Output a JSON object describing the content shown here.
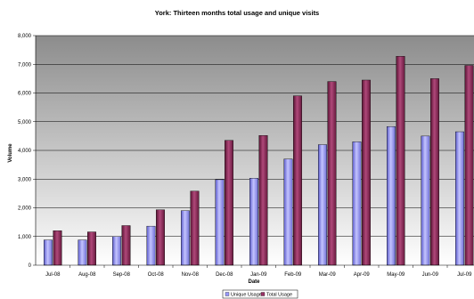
{
  "chart_data": {
    "type": "bar",
    "title": "York: Thirteen months total usage and unique visits",
    "xlabel": "Date",
    "ylabel": "Volume",
    "ylim": [
      0,
      8000
    ],
    "yticks": [
      "0",
      "1,000",
      "2,000",
      "3,000",
      "4,000",
      "5,000",
      "6,000",
      "7,000",
      "8,000"
    ],
    "categories": [
      "Jul-08",
      "Aug-08",
      "Sep-08",
      "Oct-08",
      "Nov-08",
      "Dec-08",
      "Jan-09",
      "Feb-09",
      "Mar-09",
      "Apr-09",
      "May-09",
      "Jun-09",
      "Jul-09"
    ],
    "series": [
      {
        "name": "Unique Usage",
        "color": "#9999ff",
        "values": [
          880,
          880,
          1000,
          1360,
          1900,
          2980,
          3030,
          3700,
          4200,
          4300,
          4830,
          4500,
          4650
        ]
      },
      {
        "name": "Total Usage",
        "color": "#993366",
        "values": [
          1200,
          1160,
          1380,
          1930,
          2580,
          4350,
          4520,
          5900,
          6400,
          6450,
          7280,
          6500,
          6960
        ]
      }
    ],
    "grid": true,
    "legend_position": "bottom-center"
  }
}
